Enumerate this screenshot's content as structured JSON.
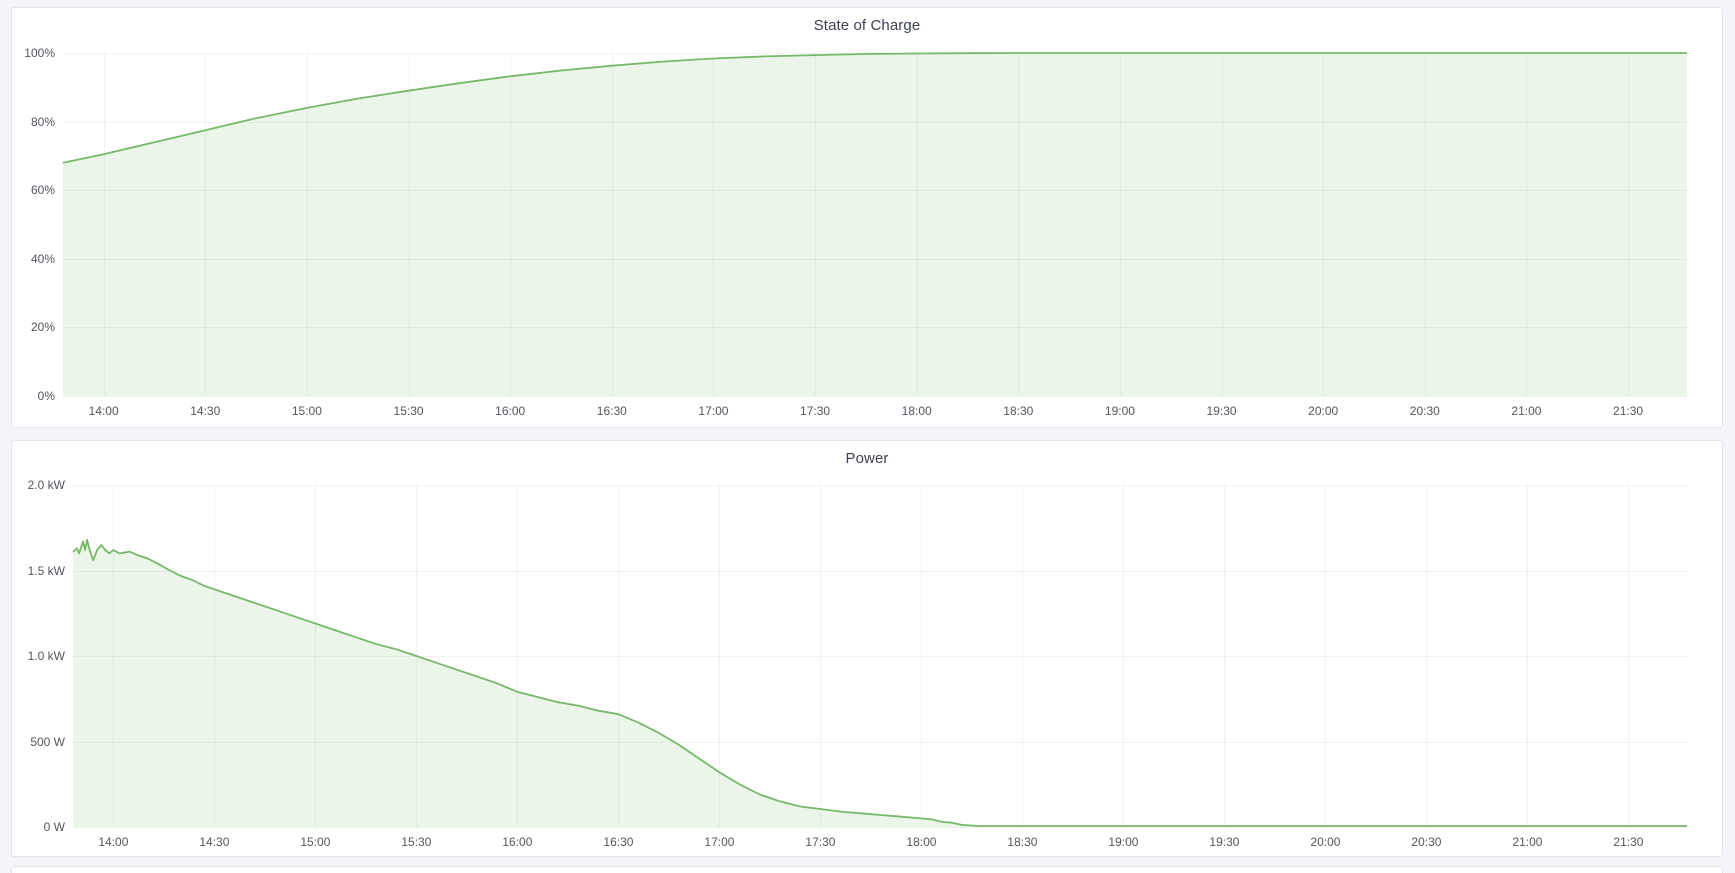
{
  "page": {
    "background": "#f4f5f9",
    "panel_background": "#ffffff",
    "panel_border": "#e2e5ec",
    "accent_green": "#77b96a"
  },
  "chart_data": [
    {
      "type": "area",
      "title": "State of Charge",
      "xlabel": "",
      "ylabel": "",
      "legend": "off",
      "grid": "on",
      "line_color": "#77b96a",
      "fill_color": "rgba(119,185,106,0.14)",
      "x_domain": [
        13.8,
        21.79
      ],
      "y_domain": [
        0,
        100
      ],
      "x_ticks": [
        {
          "t": 14.0,
          "label": "14:00"
        },
        {
          "t": 14.5,
          "label": "14:30"
        },
        {
          "t": 15.0,
          "label": "15:00"
        },
        {
          "t": 15.5,
          "label": "15:30"
        },
        {
          "t": 16.0,
          "label": "16:00"
        },
        {
          "t": 16.5,
          "label": "16:30"
        },
        {
          "t": 17.0,
          "label": "17:00"
        },
        {
          "t": 17.5,
          "label": "17:30"
        },
        {
          "t": 18.0,
          "label": "18:00"
        },
        {
          "t": 18.5,
          "label": "18:30"
        },
        {
          "t": 19.0,
          "label": "19:00"
        },
        {
          "t": 19.5,
          "label": "19:30"
        },
        {
          "t": 20.0,
          "label": "20:00"
        },
        {
          "t": 20.5,
          "label": "20:30"
        },
        {
          "t": 21.0,
          "label": "21:00"
        },
        {
          "t": 21.5,
          "label": "21:30"
        }
      ],
      "y_ticks": [
        {
          "v": 0,
          "label": "0%"
        },
        {
          "v": 20,
          "label": "20%"
        },
        {
          "v": 40,
          "label": "40%"
        },
        {
          "v": 60,
          "label": "60%"
        },
        {
          "v": 80,
          "label": "80%"
        },
        {
          "v": 100,
          "label": "100%"
        }
      ],
      "points": [
        [
          13.8,
          68.0
        ],
        [
          14.0,
          70.5
        ],
        [
          14.25,
          74.0
        ],
        [
          14.5,
          77.5
        ],
        [
          14.75,
          81.0
        ],
        [
          15.0,
          84.0
        ],
        [
          15.25,
          86.7
        ],
        [
          15.5,
          89.0
        ],
        [
          15.75,
          91.2
        ],
        [
          16.0,
          93.2
        ],
        [
          16.25,
          94.9
        ],
        [
          16.5,
          96.3
        ],
        [
          16.75,
          97.5
        ],
        [
          17.0,
          98.4
        ],
        [
          17.25,
          99.0
        ],
        [
          17.5,
          99.4
        ],
        [
          17.75,
          99.7
        ],
        [
          18.0,
          99.85
        ],
        [
          18.25,
          99.95
        ],
        [
          18.5,
          100.0
        ],
        [
          21.79,
          100.0
        ]
      ]
    },
    {
      "type": "area",
      "title": "Power",
      "xlabel": "",
      "ylabel": "",
      "legend": "off",
      "grid": "on",
      "line_color": "#77b96a",
      "fill_color": "rgba(119,185,106,0.14)",
      "x_domain": [
        13.8,
        21.79
      ],
      "y_domain": [
        0,
        2.0
      ],
      "x_ticks": [
        {
          "t": 14.0,
          "label": "14:00"
        },
        {
          "t": 14.5,
          "label": "14:30"
        },
        {
          "t": 15.0,
          "label": "15:00"
        },
        {
          "t": 15.5,
          "label": "15:30"
        },
        {
          "t": 16.0,
          "label": "16:00"
        },
        {
          "t": 16.5,
          "label": "16:30"
        },
        {
          "t": 17.0,
          "label": "17:00"
        },
        {
          "t": 17.5,
          "label": "17:30"
        },
        {
          "t": 18.0,
          "label": "18:00"
        },
        {
          "t": 18.5,
          "label": "18:30"
        },
        {
          "t": 19.0,
          "label": "19:00"
        },
        {
          "t": 19.5,
          "label": "19:30"
        },
        {
          "t": 20.0,
          "label": "20:00"
        },
        {
          "t": 20.5,
          "label": "20:30"
        },
        {
          "t": 21.0,
          "label": "21:00"
        },
        {
          "t": 21.5,
          "label": "21:30"
        }
      ],
      "y_ticks": [
        {
          "v": 0.0,
          "label": "0 W"
        },
        {
          "v": 0.5,
          "label": "500 W"
        },
        {
          "v": 1.0,
          "label": "1.0 kW"
        },
        {
          "v": 1.5,
          "label": "1.5 kW"
        },
        {
          "v": 2.0,
          "label": "2.0 kW"
        }
      ],
      "points": [
        [
          13.8,
          1.61
        ],
        [
          13.82,
          1.63
        ],
        [
          13.83,
          1.6
        ],
        [
          13.85,
          1.67
        ],
        [
          13.86,
          1.62
        ],
        [
          13.87,
          1.68
        ],
        [
          13.88,
          1.63
        ],
        [
          13.9,
          1.56
        ],
        [
          13.92,
          1.62
        ],
        [
          13.94,
          1.65
        ],
        [
          13.96,
          1.62
        ],
        [
          13.98,
          1.6
        ],
        [
          14.0,
          1.62
        ],
        [
          14.03,
          1.6
        ],
        [
          14.08,
          1.61
        ],
        [
          14.12,
          1.59
        ],
        [
          14.17,
          1.57
        ],
        [
          14.22,
          1.54
        ],
        [
          14.28,
          1.5
        ],
        [
          14.33,
          1.47
        ],
        [
          14.4,
          1.44
        ],
        [
          14.45,
          1.41
        ],
        [
          14.5,
          1.39
        ],
        [
          14.6,
          1.35
        ],
        [
          14.7,
          1.31
        ],
        [
          14.8,
          1.27
        ],
        [
          14.9,
          1.23
        ],
        [
          15.0,
          1.19
        ],
        [
          15.1,
          1.15
        ],
        [
          15.2,
          1.11
        ],
        [
          15.3,
          1.07
        ],
        [
          15.4,
          1.04
        ],
        [
          15.5,
          1.0
        ],
        [
          15.6,
          0.96
        ],
        [
          15.7,
          0.92
        ],
        [
          15.8,
          0.88
        ],
        [
          15.9,
          0.84
        ],
        [
          16.0,
          0.79
        ],
        [
          16.1,
          0.76
        ],
        [
          16.2,
          0.73
        ],
        [
          16.3,
          0.71
        ],
        [
          16.4,
          0.68
        ],
        [
          16.5,
          0.66
        ],
        [
          16.6,
          0.61
        ],
        [
          16.7,
          0.55
        ],
        [
          16.8,
          0.48
        ],
        [
          16.9,
          0.4
        ],
        [
          17.0,
          0.32
        ],
        [
          17.1,
          0.25
        ],
        [
          17.2,
          0.19
        ],
        [
          17.3,
          0.15
        ],
        [
          17.4,
          0.12
        ],
        [
          17.5,
          0.105
        ],
        [
          17.6,
          0.09
        ],
        [
          17.7,
          0.08
        ],
        [
          17.8,
          0.07
        ],
        [
          17.9,
          0.06
        ],
        [
          18.0,
          0.05
        ],
        [
          18.05,
          0.045
        ],
        [
          18.1,
          0.03
        ],
        [
          18.15,
          0.025
        ],
        [
          18.2,
          0.012
        ],
        [
          18.28,
          0.006
        ],
        [
          21.79,
          0.006
        ]
      ]
    }
  ]
}
